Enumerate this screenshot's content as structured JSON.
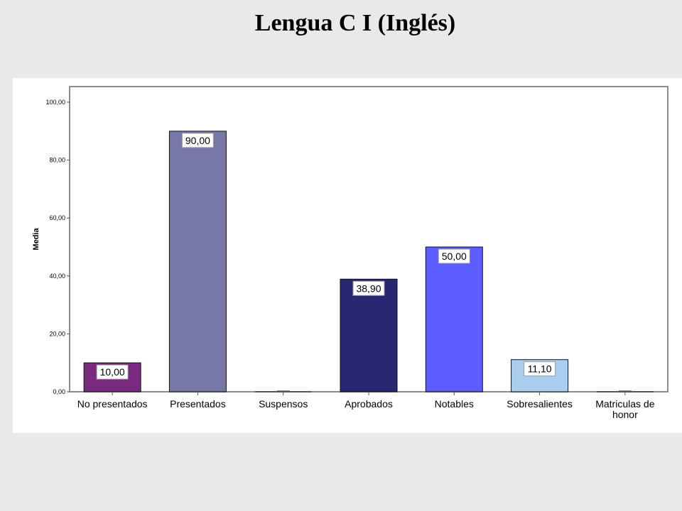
{
  "slide": {
    "title": "Lengua C I (Inglés)"
  },
  "chart_data": {
    "type": "bar",
    "title": "",
    "xlabel": "",
    "ylabel": "Media",
    "ylim": [
      0,
      100
    ],
    "yticks": [
      "0,00",
      "20,00",
      "40,00",
      "60,00",
      "80,00",
      "100,00"
    ],
    "grid": false,
    "categories": [
      [
        "No presentados"
      ],
      [
        "Presentados"
      ],
      [
        "Suspensos"
      ],
      [
        "Aprobados"
      ],
      [
        "Notables"
      ],
      [
        "Sobresalientes"
      ],
      [
        "Matriculas de",
        "honor"
      ]
    ],
    "values": [
      10.0,
      90.0,
      0.0,
      38.9,
      50.0,
      11.1,
      0.0
    ],
    "data_labels": [
      "10,00",
      "90,00",
      "",
      "38,90",
      "50,00",
      "11,10",
      ""
    ],
    "colors": [
      "#7a2a7e",
      "#7878a8",
      "#ffffff",
      "#282872",
      "#5c5cff",
      "#aacfee",
      "#ffffff"
    ]
  }
}
